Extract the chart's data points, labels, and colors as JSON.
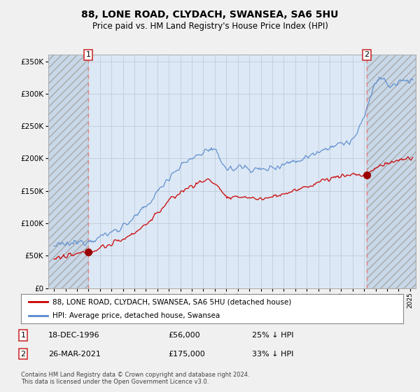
{
  "title1": "88, LONE ROAD, CLYDACH, SWANSEA, SA6 5HU",
  "title2": "Price paid vs. HM Land Registry's House Price Index (HPI)",
  "legend_label1": "88, LONE ROAD, CLYDACH, SWANSEA, SA6 5HU (detached house)",
  "legend_label2": "HPI: Average price, detached house, Swansea",
  "sale1_label": "1",
  "sale1_date": "18-DEC-1996",
  "sale1_price": "£56,000",
  "sale1_hpi": "25% ↓ HPI",
  "sale2_label": "2",
  "sale2_date": "26-MAR-2021",
  "sale2_price": "£175,000",
  "sale2_hpi": "33% ↓ HPI",
  "footnote": "Contains HM Land Registry data © Crown copyright and database right 2024.\nThis data is licensed under the Open Government Licence v3.0.",
  "sale1_x": 1996.97,
  "sale1_y": 56000,
  "sale2_x": 2021.23,
  "sale2_y": 175000,
  "hatch_end_x": 1996.97,
  "ylim": [
    0,
    360000
  ],
  "xlim": [
    1993.5,
    2025.5
  ],
  "bg_color": "#f0f0f0",
  "plot_bg": "#dce8f5",
  "hatch_bg": "#c8d8e8",
  "line_color_property": "#cc0000",
  "line_color_hpi": "#5588cc",
  "marker_color": "#990000",
  "sale_vline_color": "#ee7777"
}
